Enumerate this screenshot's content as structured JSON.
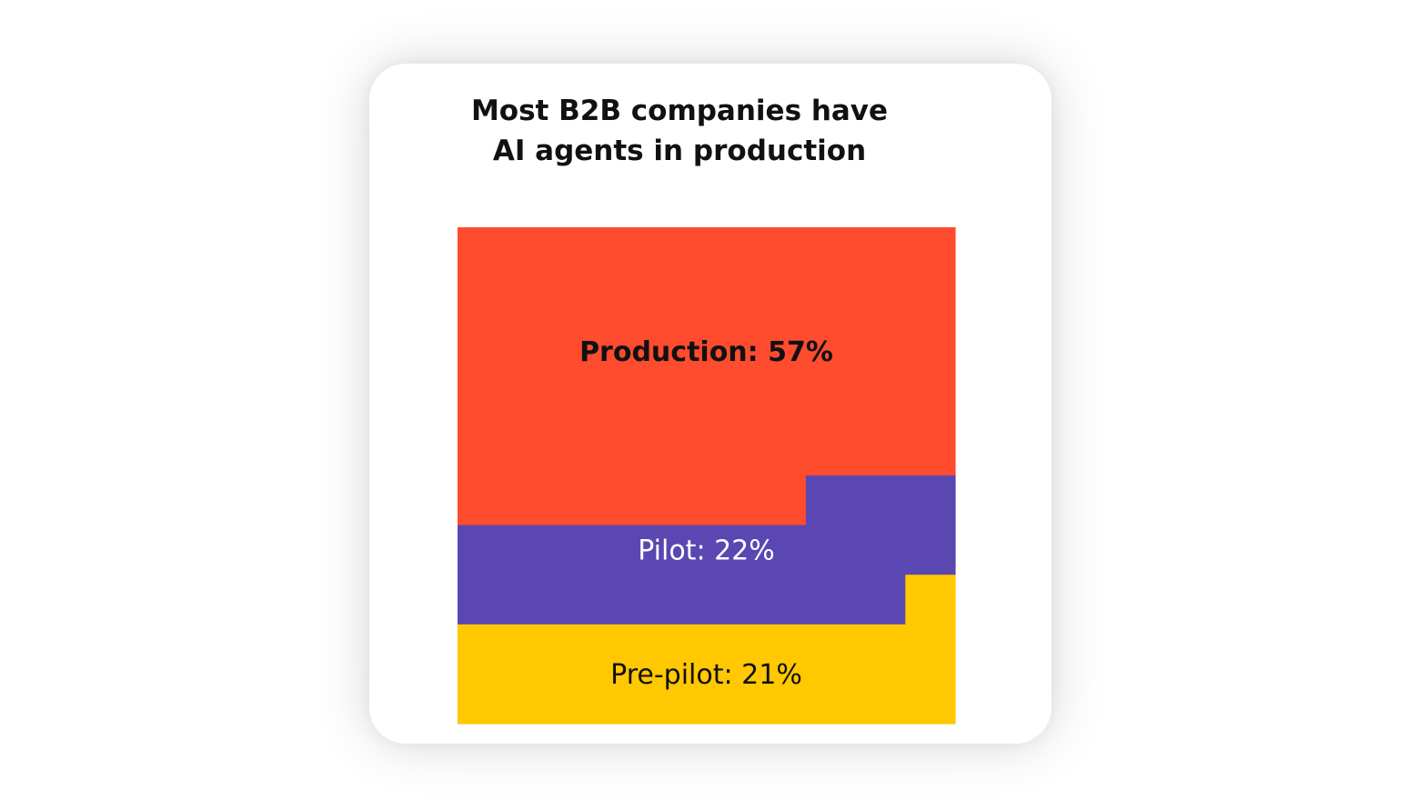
{
  "chart_data": {
    "type": "area",
    "title": [
      "Most B2B companies have",
      "AI agents in production"
    ],
    "total": 100,
    "segments": [
      {
        "label": "Production: 57%",
        "name": "Production",
        "value": 57,
        "color": "#ff4b2e",
        "text_color": "#111111",
        "bold": true
      },
      {
        "label": "Pilot: 22%",
        "name": "Pilot",
        "value": 22,
        "color": "#5b47b1",
        "text_color": "#ffffff",
        "bold": false
      },
      {
        "label": "Pre-pilot: 21%",
        "name": "Pre-pilot",
        "value": 21,
        "color": "#ffc800",
        "text_color": "#111111",
        "bold": false
      }
    ]
  }
}
